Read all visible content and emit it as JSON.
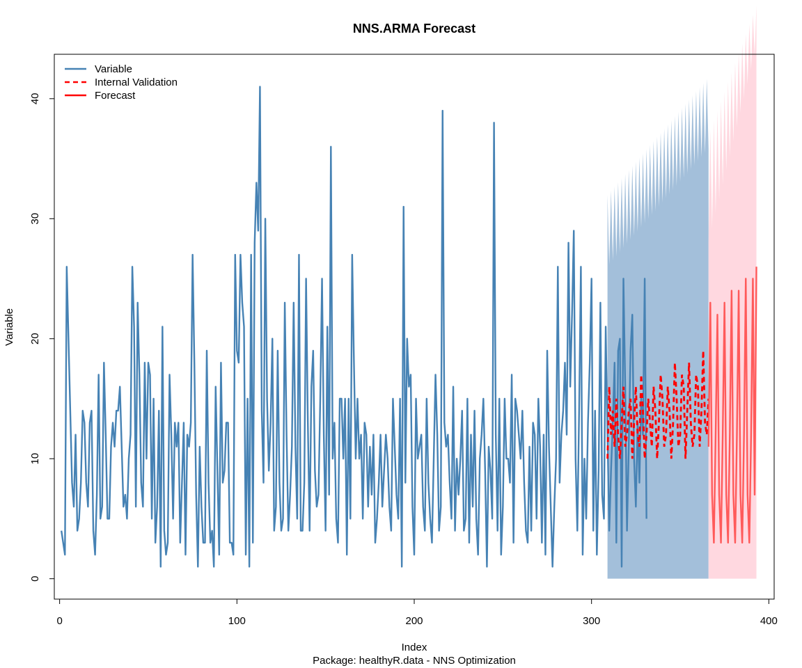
{
  "chart_data": {
    "type": "line",
    "title": "NNS.ARMA Forecast",
    "xlabel": "Index",
    "ylabel": "Variable",
    "subtitle": "Package: healthyR.data - NNS Optimization",
    "xlim": [
      -3,
      403
    ],
    "ylim": [
      -1.7,
      43.7
    ],
    "xticks": [
      0,
      100,
      200,
      300,
      400
    ],
    "yticks": [
      0,
      10,
      20,
      30,
      40
    ],
    "xtick_labels": [
      "0",
      "100",
      "200",
      "300",
      "400"
    ],
    "ytick_labels": [
      "0",
      "10",
      "20",
      "30",
      "40"
    ],
    "grid": false,
    "legend_position": "top-left",
    "legend": [
      {
        "label": "Variable",
        "color": "#4682B4",
        "style": "solid"
      },
      {
        "label": "Internal Validation",
        "color": "#FF0000",
        "style": "dashed"
      },
      {
        "label": "Forecast",
        "color": "#FF0000",
        "style": "solid"
      }
    ],
    "colors": {
      "variable": "#4682B4",
      "validation_band": "#A3BFDA",
      "validation": "#FF0000",
      "forecast": "#FF5A5A",
      "forecast_band": "#FFD8E0"
    },
    "series": [
      {
        "name": "Variable",
        "x_start": 1,
        "values": [
          4,
          3,
          2,
          26,
          20,
          14,
          8,
          6,
          12,
          4,
          5,
          8,
          14,
          13,
          8,
          6,
          13,
          14,
          4,
          2,
          7,
          17,
          5,
          6,
          18,
          12,
          5,
          5,
          11,
          13,
          11,
          14,
          14,
          16,
          11,
          6,
          7,
          5,
          10,
          12,
          26,
          21,
          6,
          23,
          17,
          8,
          6,
          18,
          10,
          18,
          17,
          5,
          15,
          3,
          6,
          14,
          1,
          21,
          4,
          2,
          3,
          17,
          12,
          5,
          13,
          11,
          13,
          3,
          8,
          13,
          2,
          12,
          11,
          13,
          27,
          18,
          7,
          1,
          11,
          6,
          3,
          3,
          19,
          8,
          3,
          4,
          1,
          16,
          9,
          2,
          18,
          8,
          9,
          13,
          13,
          3,
          3,
          2,
          27,
          19,
          18,
          27,
          23,
          21,
          2,
          15,
          1,
          27,
          3,
          28,
          33,
          29,
          41,
          14,
          8,
          30,
          15,
          9,
          13,
          20,
          4,
          6,
          19,
          8,
          4,
          5,
          23,
          12,
          4,
          7,
          11,
          23,
          11,
          5,
          27,
          4,
          4,
          8,
          25,
          13,
          4,
          16,
          19,
          9,
          6,
          7,
          15,
          25,
          12,
          4,
          21,
          7,
          36,
          10,
          13,
          5,
          3,
          15,
          15,
          10,
          15,
          2,
          15,
          5,
          27,
          18,
          10,
          15,
          10,
          12,
          5,
          13,
          12,
          6,
          11,
          7,
          12,
          3,
          5,
          8,
          12,
          6,
          9,
          12,
          10,
          6,
          4,
          15,
          11,
          7,
          5,
          15,
          1,
          31,
          8,
          20,
          16,
          17,
          6,
          2,
          15,
          10,
          11,
          12,
          6,
          4,
          15,
          8,
          5,
          3,
          10,
          17,
          12,
          4,
          6,
          39,
          13,
          11,
          12,
          8,
          5,
          16,
          4,
          10,
          7,
          10,
          14,
          4,
          5,
          15,
          3,
          12,
          6,
          14,
          5,
          2,
          10,
          12,
          15,
          9,
          1,
          11,
          9,
          5,
          38,
          12,
          4,
          15,
          2,
          6,
          15,
          10,
          10,
          8,
          17,
          3,
          15,
          14,
          12,
          10,
          14,
          8,
          4,
          3,
          11,
          4,
          13,
          12,
          5,
          15,
          11,
          3,
          12,
          2,
          19,
          11,
          6,
          1,
          6,
          10,
          26,
          8,
          12,
          14,
          18,
          12,
          28,
          16,
          22,
          29,
          10,
          4,
          14,
          26,
          2,
          10,
          5,
          13,
          18,
          25,
          4,
          14,
          2,
          9,
          23,
          7,
          5,
          21,
          12,
          4,
          9,
          13,
          18,
          3,
          19,
          20,
          1,
          25,
          16,
          4,
          11,
          19,
          22,
          10,
          6,
          13,
          8,
          15,
          12,
          25,
          5
        ]
      },
      {
        "name": "Internal Validation",
        "x_start": 309,
        "values": [
          10,
          16,
          12,
          14,
          11,
          15,
          12,
          10,
          13,
          16,
          11,
          12,
          14,
          15,
          10,
          13,
          16,
          12,
          11,
          17,
          14,
          10,
          12,
          15,
          13,
          11,
          16,
          14,
          10,
          13,
          17,
          15,
          11,
          12,
          16,
          14,
          10,
          13,
          18,
          15,
          11,
          12,
          17,
          16,
          10,
          14,
          18,
          13,
          11,
          12,
          17,
          16,
          11,
          14,
          19,
          13,
          12,
          15
        ]
      },
      {
        "name": "Forecast",
        "x_start": 366,
        "values": [
          11,
          23,
          7,
          3,
          12,
          22,
          7,
          3,
          12,
          23,
          7,
          3,
          12,
          24,
          7,
          3,
          12,
          24,
          7,
          3,
          12,
          25,
          7,
          3,
          12,
          25,
          7,
          26
        ]
      }
    ]
  }
}
